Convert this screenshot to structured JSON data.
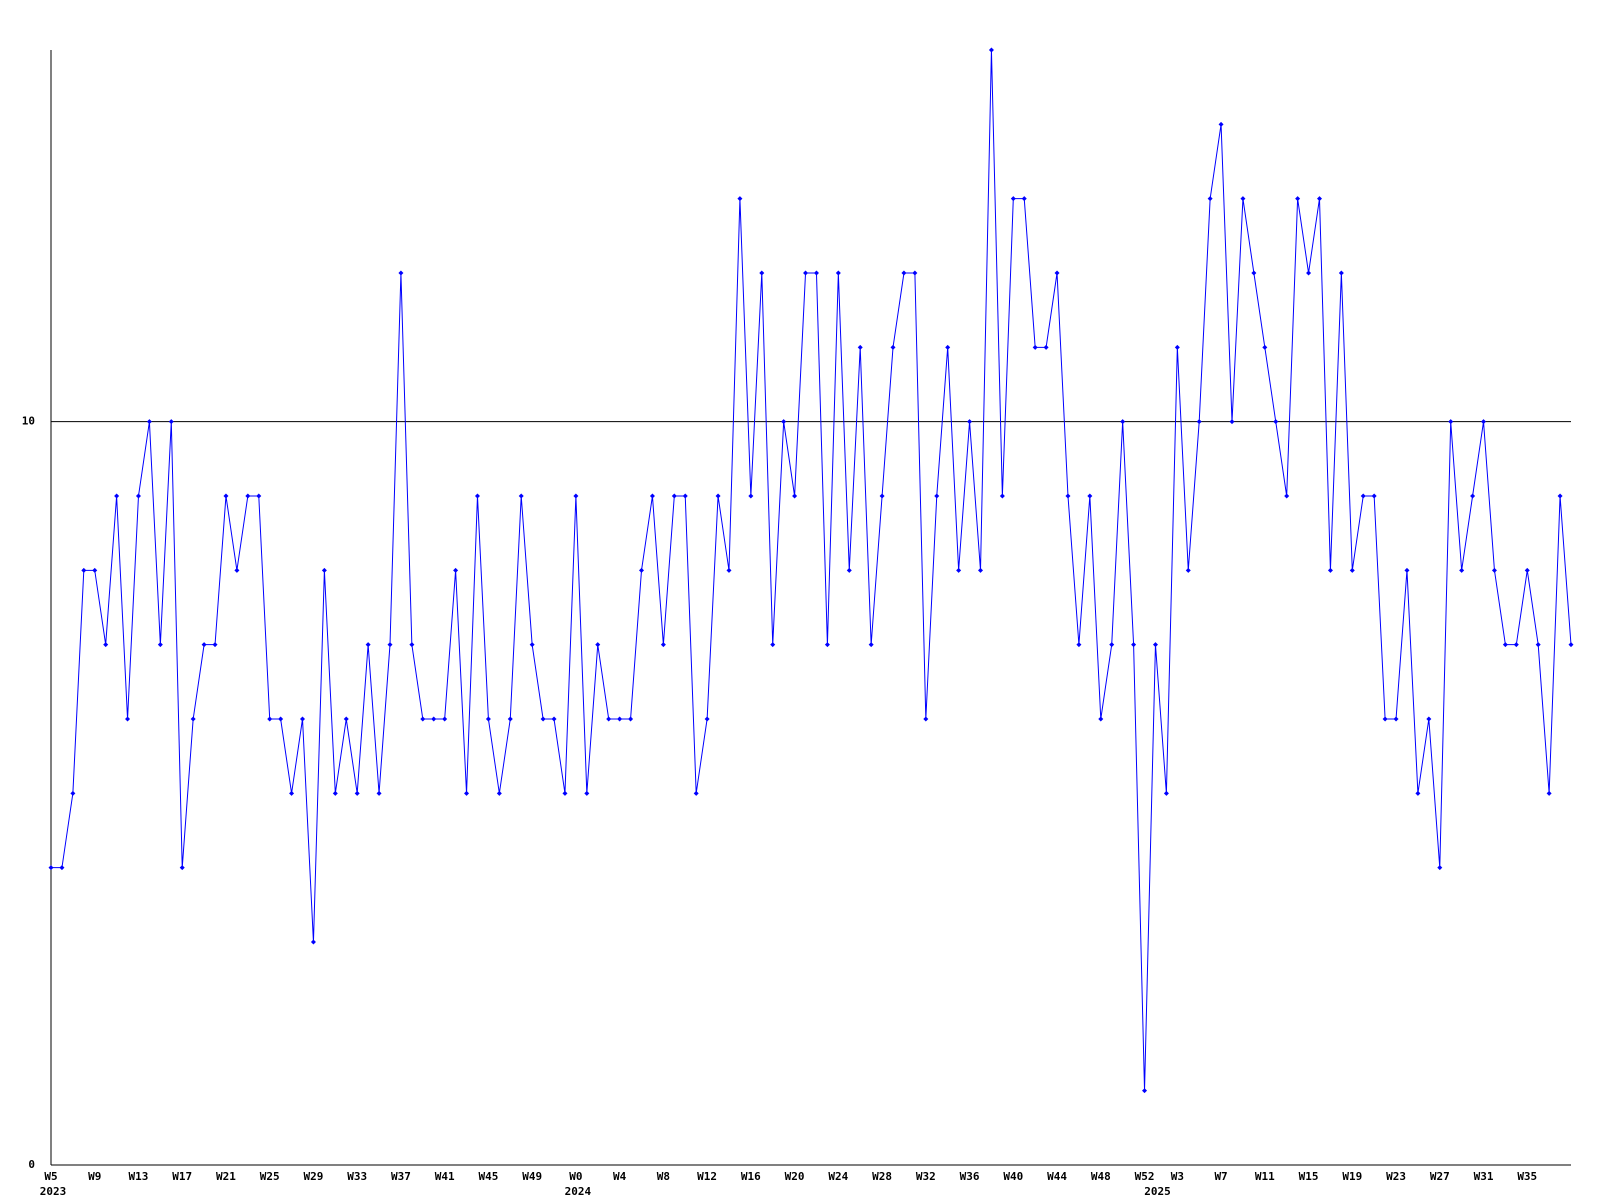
{
  "chart_data": {
    "type": "line",
    "color": "#0000ff",
    "categories": [
      "W5",
      null,
      null,
      null,
      "W9",
      null,
      null,
      null,
      "W13",
      null,
      null,
      null,
      "W17",
      null,
      null,
      null,
      "W21",
      null,
      null,
      null,
      "W25",
      null,
      null,
      null,
      "W29",
      null,
      null,
      null,
      "W33",
      null,
      null,
      null,
      "W37",
      null,
      null,
      null,
      "W41",
      null,
      null,
      null,
      "W45",
      null,
      null,
      null,
      "W49",
      null,
      null,
      null,
      "W0",
      null,
      null,
      null,
      "W4",
      null,
      null,
      null,
      "W8",
      null,
      null,
      null,
      "W12",
      null,
      null,
      null,
      "W16",
      null,
      null,
      null,
      "W20",
      null,
      null,
      null,
      "W24",
      null,
      null,
      null,
      "W28",
      null,
      null,
      null,
      "W32",
      null,
      null,
      null,
      "W36",
      null,
      null,
      null,
      "W40",
      null,
      null,
      null,
      "W44",
      null,
      null,
      null,
      "W48",
      null,
      null,
      null,
      "W52",
      null,
      null,
      "W3",
      null,
      null,
      null,
      "W7",
      null,
      null,
      null,
      "W11",
      null,
      null,
      null,
      "W15",
      null,
      null,
      null,
      "W19",
      null,
      null,
      null,
      "W23",
      null,
      null,
      null,
      "W27",
      null,
      null,
      null,
      "W31",
      null,
      null,
      null,
      "W35",
      null,
      null,
      null,
      null
    ],
    "category_years": [
      "2023",
      null,
      null,
      null,
      null,
      null,
      null,
      null,
      null,
      null,
      null,
      null,
      null,
      null,
      null,
      null,
      null,
      null,
      null,
      null,
      null,
      null,
      null,
      null,
      null,
      null,
      null,
      null,
      null,
      null,
      null,
      null,
      null,
      null,
      null,
      null,
      null,
      null,
      null,
      null,
      null,
      null,
      null,
      null,
      null,
      null,
      null,
      null,
      "2024",
      null,
      null,
      null,
      null,
      null,
      null,
      null,
      null,
      null,
      null,
      null,
      null,
      null,
      null,
      null,
      null,
      null,
      null,
      null,
      null,
      null,
      null,
      null,
      null,
      null,
      null,
      null,
      null,
      null,
      null,
      null,
      null,
      null,
      null,
      null,
      null,
      null,
      null,
      null,
      null,
      null,
      null,
      null,
      null,
      null,
      null,
      null,
      null,
      null,
      null,
      null,
      null,
      "2025",
      null,
      null,
      null,
      null,
      null,
      null,
      null,
      null,
      null,
      null,
      null,
      null,
      null,
      null,
      null,
      null,
      null,
      null,
      null,
      null,
      null,
      null,
      null,
      null,
      null,
      null,
      null,
      null,
      null,
      null,
      null,
      null,
      null,
      null,
      null,
      null,
      null,
      null
    ],
    "values": [
      4,
      4,
      5,
      8,
      8,
      7,
      9,
      6,
      9,
      10,
      7,
      10,
      4,
      6,
      7,
      7,
      9,
      8,
      9,
      9,
      6,
      6,
      5,
      6,
      3,
      8,
      5,
      6,
      5,
      7,
      5,
      7,
      12,
      7,
      6,
      6,
      6,
      8,
      5,
      9,
      6,
      5,
      6,
      9,
      7,
      6,
      6,
      5,
      9,
      5,
      7,
      6,
      6,
      6,
      8,
      9,
      7,
      9,
      9,
      5,
      6,
      9,
      8,
      13,
      9,
      12,
      7,
      10,
      9,
      12,
      12,
      7,
      12,
      8,
      11,
      7,
      9,
      11,
      12,
      12,
      6,
      9,
      11,
      8,
      10,
      8,
      15,
      9,
      13,
      13,
      11,
      11,
      12,
      9,
      7,
      9,
      6,
      7,
      10,
      7,
      1,
      7,
      5,
      11,
      8,
      10,
      13,
      14,
      10,
      13,
      12,
      11,
      10,
      9,
      13,
      12,
      13,
      8,
      12,
      8,
      9,
      9,
      6,
      6,
      8,
      5,
      6,
      4,
      10,
      8,
      9,
      10,
      8,
      7,
      7,
      8,
      7,
      5,
      9,
      7
    ],
    "ylim": [
      0,
      15
    ],
    "yticks": [
      0,
      10
    ],
    "grid": true
  }
}
